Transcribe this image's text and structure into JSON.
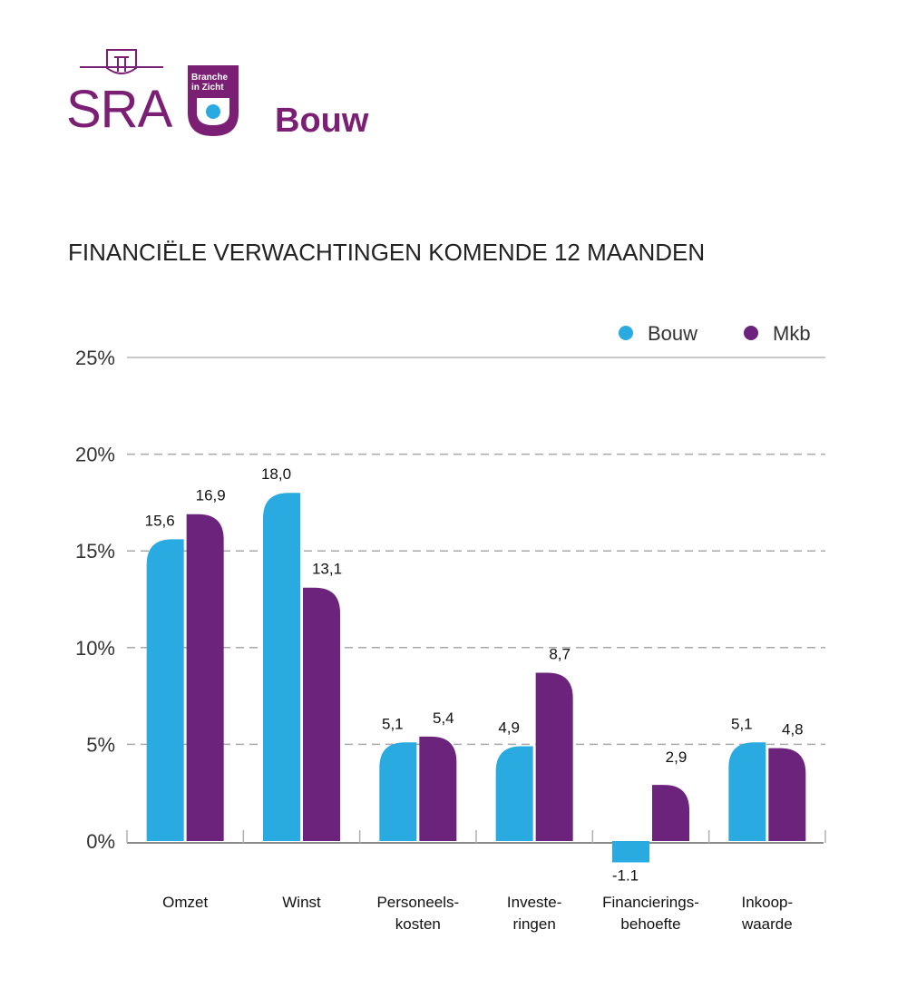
{
  "brand": {
    "logo_text": "SRA",
    "tag_text": "Branche in Zicht",
    "sector": "Bouw",
    "colors": {
      "purple": "#7b1f75",
      "blue": "#29abe2"
    }
  },
  "chart_data": {
    "type": "bar",
    "title": "FINANCIËLE VERWACHTINGEN KOMENDE 12 MAANDEN",
    "xlabel": "",
    "ylabel": "",
    "ylim": [
      0,
      25
    ],
    "yticks": [
      "0%",
      "5%",
      "10%",
      "15%",
      "20%",
      "25%"
    ],
    "ytick_values": [
      0,
      5,
      10,
      15,
      20,
      25
    ],
    "grid": true,
    "legend_position": "top-right",
    "categories": [
      [
        "Omzet"
      ],
      [
        "Winst"
      ],
      [
        "Personeels-",
        "kosten"
      ],
      [
        "Investe-",
        "ringen"
      ],
      [
        "Financierings-",
        "behoefte"
      ],
      [
        "Inkoop-",
        "waarde"
      ]
    ],
    "series": [
      {
        "name": "Bouw",
        "color": "#29abe2",
        "values": [
          15.6,
          18.0,
          5.1,
          4.9,
          -1.1,
          5.1
        ],
        "labels": [
          "15,6",
          "18,0",
          "5,1",
          "4,9",
          "-1.1",
          "5,1"
        ]
      },
      {
        "name": "Mkb",
        "color": "#6c237b",
        "values": [
          16.9,
          13.1,
          5.4,
          8.7,
          2.9,
          4.8
        ],
        "labels": [
          "16,9",
          "13,1",
          "5,4",
          "8,7",
          "2,9",
          "4,8"
        ]
      }
    ]
  }
}
